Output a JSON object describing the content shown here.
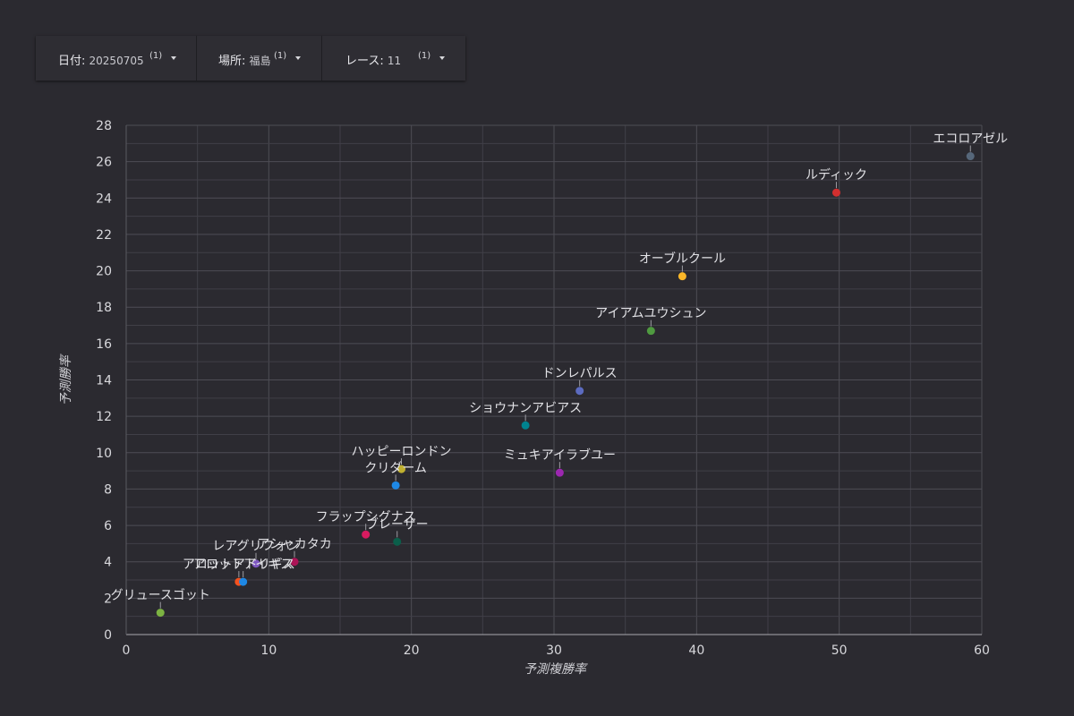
{
  "filters": {
    "date": {
      "label": "日付",
      "value": "20250705",
      "count": "(1)"
    },
    "place": {
      "label": "場所",
      "value": "福島",
      "count": "(1)"
    },
    "race": {
      "label": "レース",
      "value": "11",
      "count": "(1)"
    }
  },
  "chart_data": {
    "type": "scatter",
    "xlabel": "予測複勝率",
    "ylabel": "予測勝率",
    "xlim": [
      0,
      60
    ],
    "ylim": [
      0,
      28
    ],
    "x_ticks": [
      0,
      10,
      20,
      30,
      40,
      50,
      60
    ],
    "y_ticks": [
      0,
      2,
      4,
      6,
      8,
      10,
      12,
      14,
      16,
      18,
      20,
      22,
      24,
      26,
      28
    ],
    "grid": true,
    "points": [
      {
        "name": "エコロアゼル",
        "x": 59.2,
        "y": 26.3,
        "color": "#56677a"
      },
      {
        "name": "ルディック",
        "x": 49.8,
        "y": 24.3,
        "color": "#d32f2f"
      },
      {
        "name": "オーブルクール",
        "x": 39.0,
        "y": 19.7,
        "color": "#fbb728"
      },
      {
        "name": "アイアムユウシュン",
        "x": 36.8,
        "y": 16.7,
        "color": "#4f9a40"
      },
      {
        "name": "ドンレパルス",
        "x": 31.8,
        "y": 13.4,
        "color": "#5c6bc0"
      },
      {
        "name": "ショウナンアビアス",
        "x": 28.0,
        "y": 11.5,
        "color": "#00838f"
      },
      {
        "name": "ミュキアイラブユー",
        "x": 30.4,
        "y": 8.9,
        "color": "#9c27b0"
      },
      {
        "name": "ハッピーロンドン",
        "x": 19.3,
        "y": 9.1,
        "color": "#c0b030"
      },
      {
        "name": "クリダーム",
        "x": 18.9,
        "y": 8.2,
        "color": "#1e88e5"
      },
      {
        "name": "フラップシグナス",
        "x": 16.8,
        "y": 5.5,
        "color": "#d81b60"
      },
      {
        "name": "ブレーザー",
        "x": 19.0,
        "y": 5.1,
        "color": "#0b5e4a"
      },
      {
        "name": "レアグリフォン",
        "x": 9.1,
        "y": 3.9,
        "color": "#7e57c2"
      },
      {
        "name": "アシャカタカ",
        "x": 11.8,
        "y": 4.0,
        "color": "#ad1457"
      },
      {
        "name": "アロットアドリギス",
        "x": 7.9,
        "y": 2.9,
        "color": "#f4511e"
      },
      {
        "name": "アロットアイギス",
        "x": 8.2,
        "y": 2.9,
        "color": "#1e88e5"
      },
      {
        "name": "グリュースゴット",
        "x": 2.4,
        "y": 1.2,
        "color": "#7cb342"
      }
    ]
  }
}
